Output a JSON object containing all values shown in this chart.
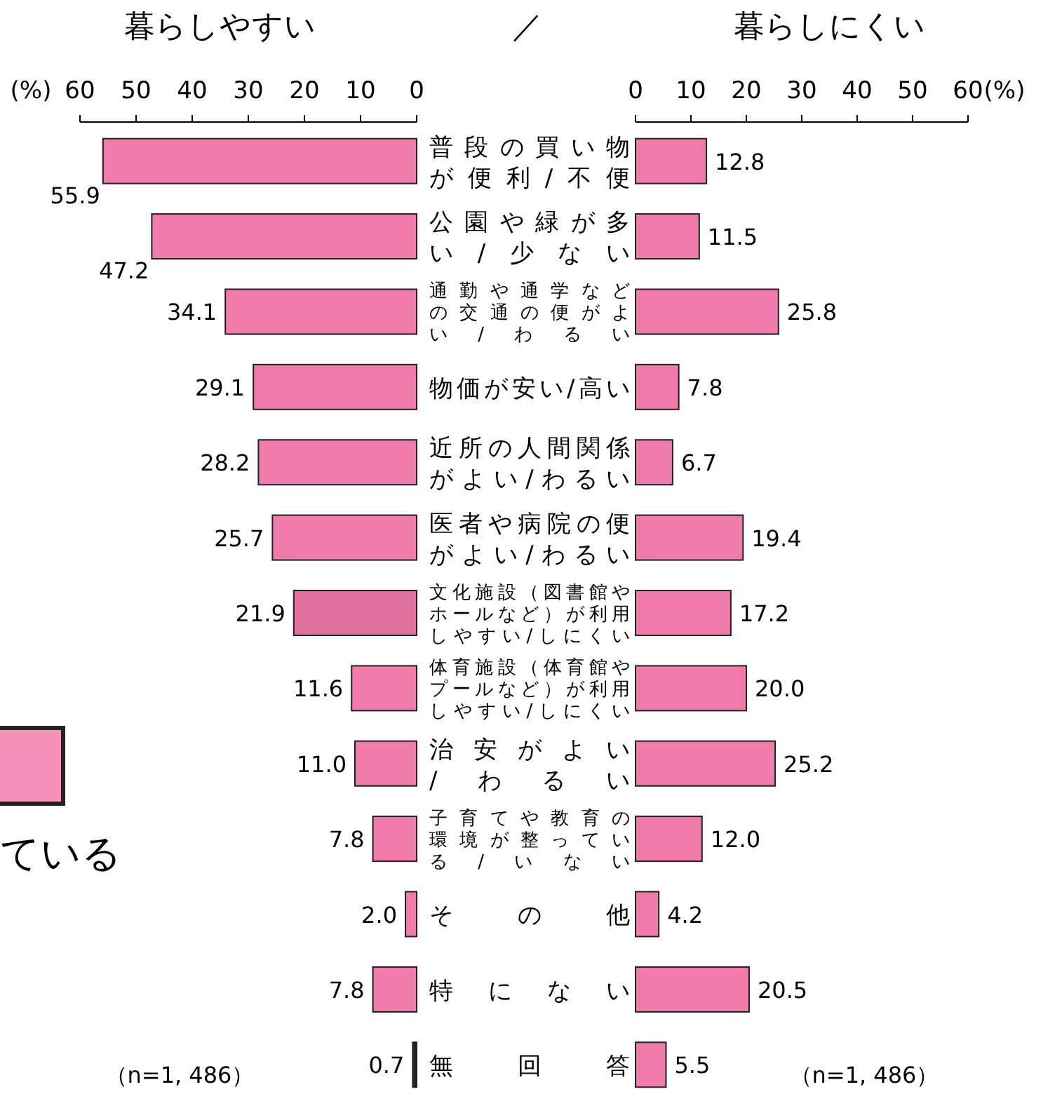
{
  "chart_data": [
    {
      "type": "bar",
      "orientation": "horizontal",
      "title": "暮らしやすい",
      "xlabel": "(%)",
      "categories": [
        "普段の買い物が便利/不便",
        "公園や緑が多い/少ない",
        "通勤や通学などの交通の便がよい/わるい",
        "物価が安い/高い",
        "近所の人間関係がよい/わるい",
        "医者や病院の便がよい/わるい",
        "文化施設（図書館やホールなど）が利用しやすい/しにくい",
        "体育施設（体育館やプールなど）が利用しやすい/しにくい",
        "治安がよい/わるい",
        "子育てや教育の環境が整っている/いない",
        "その他",
        "特にない",
        "無回答"
      ],
      "values": [
        55.9,
        47.2,
        34.1,
        29.1,
        28.2,
        25.7,
        21.9,
        11.6,
        11.0,
        7.8,
        2.0,
        7.8,
        0.7
      ],
      "value_labels": [
        "55.9",
        "47.2",
        "34.1",
        "29.1",
        "28.2",
        "25.7",
        "21.9",
        "11.6",
        "11.0",
        "7.8",
        "2.0",
        "7.8",
        "0.7"
      ],
      "colors": [
        "#f07aaa",
        "#f07aaa",
        "#f07aaa",
        "#f07aaa",
        "#f07aaa",
        "#f07aaa",
        "#e0709c",
        "#f07aaa",
        "#f07aaa",
        "#f07aaa",
        "#f07aaa",
        "#f07aaa",
        "#222222"
      ],
      "xlim": [
        60,
        0
      ],
      "xticks": [
        60,
        50,
        40,
        30,
        20,
        10,
        0
      ],
      "annotations": [
        "（n=1, 486）",
        "／",
        "ている"
      ]
    },
    {
      "type": "bar",
      "orientation": "horizontal",
      "title": "暮らしにくい",
      "xlabel": "(%)",
      "values": [
        12.8,
        11.5,
        25.8,
        7.8,
        6.7,
        19.4,
        17.2,
        20.0,
        25.2,
        12.0,
        4.2,
        20.5,
        5.5
      ],
      "value_labels": [
        "12.8",
        "11.5",
        "25.8",
        "7.8",
        "6.7",
        "19.4",
        "17.2",
        "20.0",
        "25.2",
        "12.0",
        "4.2",
        "20.5",
        "5.5"
      ],
      "color": "#f07aaa",
      "xlim": [
        0,
        60
      ],
      "xticks": [
        0,
        10,
        20,
        30,
        40,
        50,
        60
      ],
      "tick_labels": "x",
      "annotations": [
        "（n=1, 486）"
      ]
    }
  ]
}
